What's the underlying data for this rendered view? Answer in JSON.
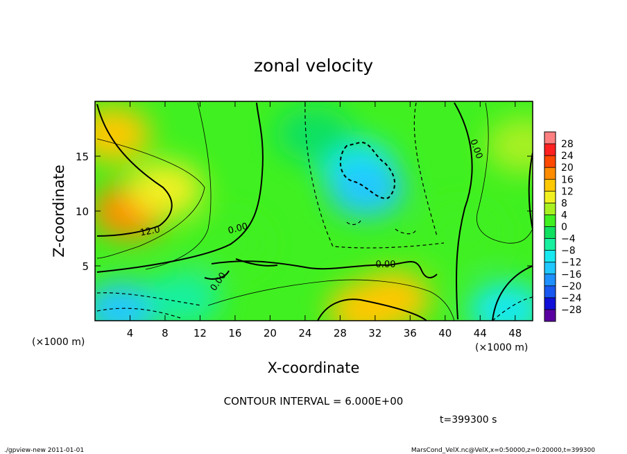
{
  "chart_data": {
    "type": "heatmap",
    "title": "zonal velocity",
    "xlabel": "X-coordinate",
    "ylabel": "Z-coordinate",
    "x_unit": "(×1000 m)",
    "z_unit": "(×1000 m)",
    "xlim": [
      0,
      50
    ],
    "ylim": [
      0,
      20
    ],
    "x_ticks": [
      4,
      8,
      12,
      16,
      20,
      24,
      28,
      32,
      36,
      40,
      44,
      48
    ],
    "y_ticks": [
      5,
      10,
      15
    ],
    "colorbar": {
      "levels": [
        -30,
        -28,
        -24,
        -20,
        -16,
        -12,
        -8,
        -4,
        0,
        4,
        8,
        12,
        16,
        20,
        24,
        28,
        30
      ],
      "labels": [
        "28",
        "24",
        "20",
        "16",
        "12",
        "8",
        "4",
        "0",
        "−4",
        "−8",
        "−12",
        "−16",
        "−20",
        "−24",
        "−28"
      ],
      "colors": [
        "#5a00a0",
        "#1010d8",
        "#1858f0",
        "#1e90ff",
        "#20c8ff",
        "#18e8f0",
        "#18f0a0",
        "#10e060",
        "#40f020",
        "#a8f020",
        "#f0f020",
        "#ffc800",
        "#ff8c00",
        "#ff4800",
        "#ff2020",
        "#ff8080"
      ]
    },
    "contour_labels": [
      "12.0",
      "0.00",
      "0.00",
      "0.00",
      "0.00"
    ],
    "contour_interval_text": "CONTOUR INTERVAL = 6.000E+00",
    "time_text": "t=399300 s",
    "field_samples": [
      {
        "x": 2,
        "z": 17,
        "u": 12
      },
      {
        "x": 4,
        "z": 10,
        "u": 16
      },
      {
        "x": 8,
        "z": 12,
        "u": 10
      },
      {
        "x": 3,
        "z": 1,
        "u": -16
      },
      {
        "x": 10,
        "z": 2,
        "u": -8
      },
      {
        "x": 30,
        "z": 14,
        "u": -12
      },
      {
        "x": 31,
        "z": 12,
        "u": -14
      },
      {
        "x": 25,
        "z": 17,
        "u": -4
      },
      {
        "x": 31,
        "z": 1,
        "u": 14
      },
      {
        "x": 34,
        "z": 2,
        "u": 12
      },
      {
        "x": 47,
        "z": 1,
        "u": -12
      },
      {
        "x": 49,
        "z": 16,
        "u": 6
      },
      {
        "x": 15,
        "z": 7,
        "u": 2
      },
      {
        "x": 42,
        "z": 8,
        "u": 2
      }
    ]
  },
  "footer": {
    "left": "./gpview-new  2011-01-01",
    "right": "MarsCond_VelX.nc@VelX,x=0:50000,z=0:20000,t=399300"
  }
}
